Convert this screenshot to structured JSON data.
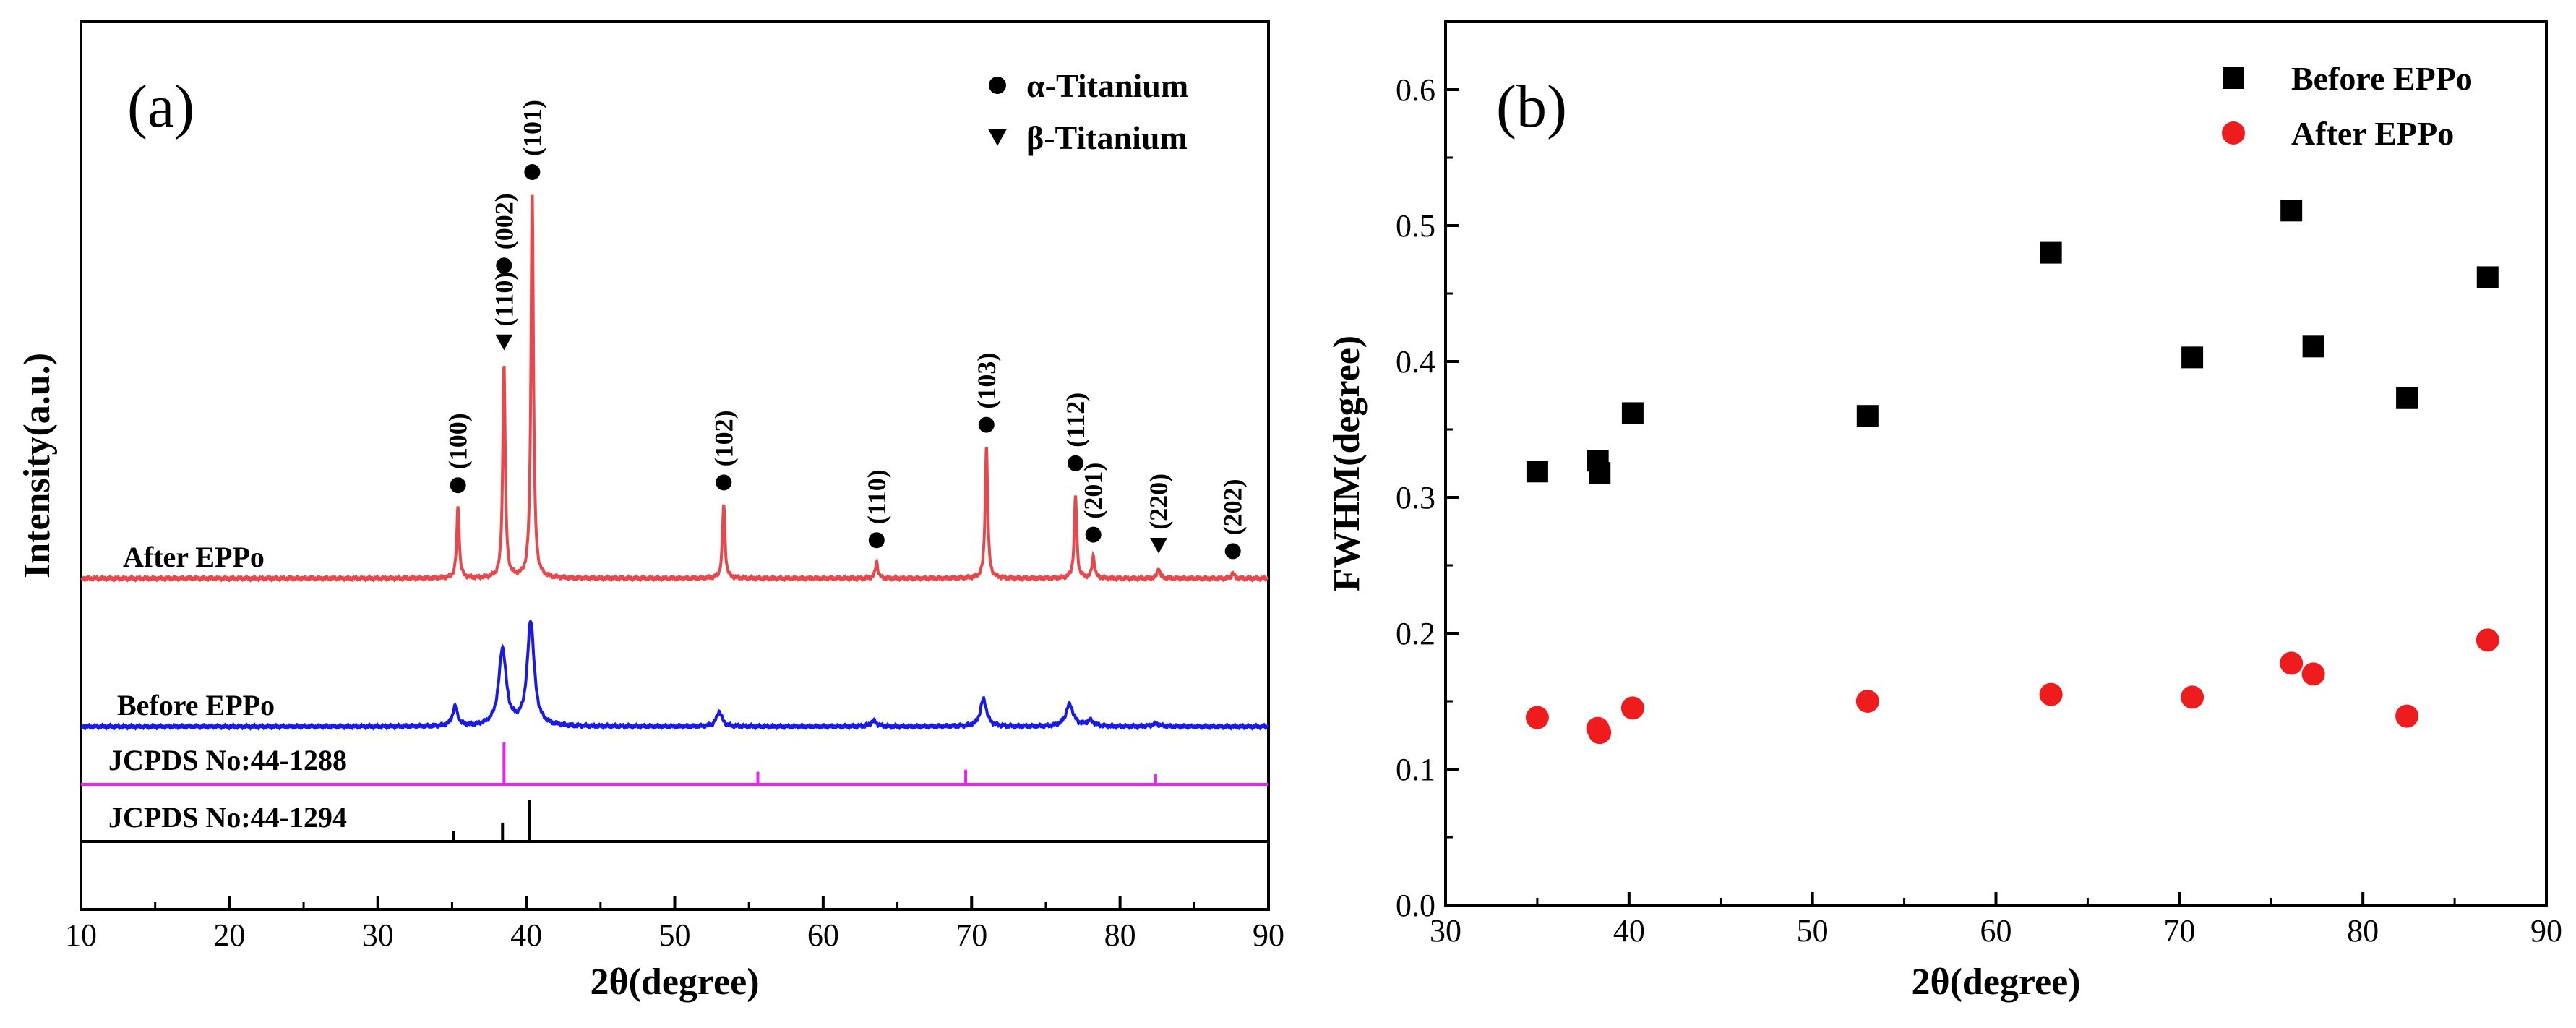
{
  "chart_data": [
    {
      "panel": "(a)",
      "type": "line",
      "xlabel": "2θ(degree)",
      "ylabel": "Intensity(a.u.)",
      "xlim": [
        10,
        90
      ],
      "xticks": [
        10,
        20,
        30,
        40,
        50,
        60,
        70,
        80,
        90
      ],
      "legend": [
        {
          "marker": "circle",
          "label": "α-Titanium"
        },
        {
          "marker": "triangle-down",
          "label": "β-Titanium"
        }
      ],
      "series": [
        {
          "name": "After EPPo",
          "color": "#e8474c",
          "peaks": [
            {
              "x": 35.4,
              "h": 0.26,
              "w": 0.1
            },
            {
              "x": 38.5,
              "h": 0.78,
              "w": 0.1
            },
            {
              "x": 40.4,
              "h": 1.4,
              "w": 0.1
            },
            {
              "x": 53.3,
              "h": 0.27,
              "w": 0.1
            },
            {
              "x": 63.6,
              "h": 0.06,
              "w": 0.1
            },
            {
              "x": 71.0,
              "h": 0.48,
              "w": 0.1
            },
            {
              "x": 77.0,
              "h": 0.3,
              "w": 0.1
            },
            {
              "x": 78.2,
              "h": 0.08,
              "w": 0.1
            },
            {
              "x": 82.6,
              "h": 0.04,
              "w": 0.1
            },
            {
              "x": 87.6,
              "h": 0.02,
              "w": 0.1
            }
          ]
        },
        {
          "name": "Before EPPo",
          "color": "#1a1ae6",
          "peaks": [
            {
              "x": 35.2,
              "h": 0.07,
              "w": 0.2
            },
            {
              "x": 38.4,
              "h": 0.28,
              "w": 0.3
            },
            {
              "x": 40.3,
              "h": 0.38,
              "w": 0.28
            },
            {
              "x": 53.0,
              "h": 0.055,
              "w": 0.22
            },
            {
              "x": 63.4,
              "h": 0.02,
              "w": 0.25
            },
            {
              "x": 70.8,
              "h": 0.1,
              "w": 0.25
            },
            {
              "x": 76.6,
              "h": 0.08,
              "w": 0.3
            },
            {
              "x": 78.0,
              "h": 0.02,
              "w": 0.3
            },
            {
              "x": 82.4,
              "h": 0.01,
              "w": 0.3
            }
          ]
        }
      ],
      "references": [
        {
          "name": "JCPDS No:44-1288",
          "color": "#ee22ee",
          "lines": [
            {
              "x": 38.5,
              "h": 1.0
            },
            {
              "x": 55.6,
              "h": 0.3
            },
            {
              "x": 69.6,
              "h": 0.35
            },
            {
              "x": 82.4,
              "h": 0.25
            }
          ]
        },
        {
          "name": "JCPDS No:44-1294",
          "color": "#000000",
          "lines": [
            {
              "x": 35.1,
              "h": 0.25
            },
            {
              "x": 38.4,
              "h": 0.45
            },
            {
              "x": 40.2,
              "h": 1.0
            }
          ]
        }
      ],
      "peak_labels": [
        {
          "x": 35.4,
          "marker": "circle",
          "hkl": "(100)",
          "h": 0.26
        },
        {
          "x": 38.5,
          "marker": "triangle-down",
          "hkl": "(110)",
          "h": 0.78
        },
        {
          "x": 38.5,
          "marker": "circle",
          "hkl": "(002)",
          "h": 1.06
        },
        {
          "x": 40.4,
          "marker": "circle",
          "hkl": "(101)",
          "h": 1.4
        },
        {
          "x": 53.3,
          "marker": "circle",
          "hkl": "(102)",
          "h": 0.27
        },
        {
          "x": 63.6,
          "marker": "circle",
          "hkl": "(110)",
          "h": 0.06
        },
        {
          "x": 71.0,
          "marker": "circle",
          "hkl": "(103)",
          "h": 0.48
        },
        {
          "x": 77.0,
          "marker": "circle",
          "hkl": "(112)",
          "h": 0.34
        },
        {
          "x": 78.2,
          "marker": "circle",
          "hkl": "(201)",
          "h": 0.08
        },
        {
          "x": 82.6,
          "marker": "triangle-down",
          "hkl": "(220)",
          "h": 0.04
        },
        {
          "x": 87.6,
          "marker": "circle",
          "hkl": "(202)",
          "h": 0.02
        }
      ]
    },
    {
      "panel": "(b)",
      "type": "scatter",
      "xlabel": "2θ(degree)",
      "ylabel": "FWHM(degree)",
      "xlim": [
        30,
        90
      ],
      "ylim": [
        0.0,
        0.65
      ],
      "xticks": [
        30,
        40,
        50,
        60,
        70,
        80,
        90
      ],
      "yticks": [
        "0.0",
        "0.1",
        "0.2",
        "0.3",
        "0.4",
        "0.5",
        "0.6"
      ],
      "legend_position": "top-right",
      "series": [
        {
          "name": "Before EPPo",
          "marker": "square",
          "color": "#000000",
          "x": [
            35.0,
            38.3,
            38.4,
            40.2,
            53.0,
            63.0,
            70.7,
            76.1,
            77.3,
            82.4,
            86.8
          ],
          "y": [
            0.319,
            0.327,
            0.318,
            0.362,
            0.36,
            0.48,
            0.403,
            0.511,
            0.411,
            0.373,
            0.462
          ]
        },
        {
          "name": "After  EPPo",
          "marker": "circle",
          "color": "#ee1c1c",
          "x": [
            35.0,
            38.3,
            38.4,
            40.2,
            53.0,
            63.0,
            70.7,
            76.1,
            77.3,
            82.4,
            86.8
          ],
          "y": [
            0.138,
            0.13,
            0.127,
            0.145,
            0.15,
            0.155,
            0.153,
            0.178,
            0.17,
            0.139,
            0.195
          ]
        }
      ]
    }
  ]
}
